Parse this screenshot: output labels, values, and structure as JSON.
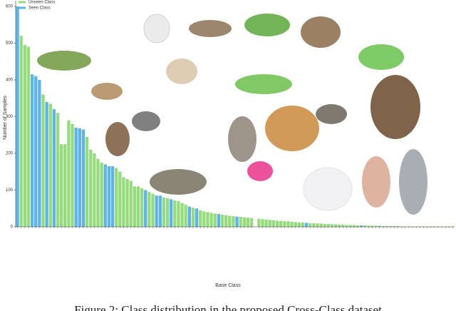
{
  "chart_data": {
    "type": "bar",
    "xlabel": "Base Class",
    "ylabel": "Number of Samples",
    "caption": "Figure 2: Class distribution in the proposed Cross-Class dataset",
    "ylim": [
      0,
      600
    ],
    "yticks": [
      0,
      100,
      200,
      300,
      400,
      500,
      600
    ],
    "series": [
      {
        "name": "Unseen Class",
        "color": "#95dc7c",
        "values": [
          null,
          520,
          495,
          490,
          null,
          null,
          null,
          360,
          null,
          335,
          null,
          310,
          225,
          225,
          290,
          280,
          null,
          null,
          null,
          245,
          210,
          200,
          185,
          175,
          null,
          null,
          null,
          160,
          150,
          135,
          130,
          125,
          110,
          110,
          105,
          null,
          95,
          90,
          null,
          null,
          80,
          78,
          null,
          72,
          70,
          65,
          60,
          null,
          52,
          null,
          45,
          42,
          40,
          38,
          36,
          null,
          33,
          32,
          30,
          29,
          null,
          27,
          26,
          25,
          24,
          null,
          22,
          21,
          20,
          19,
          18,
          17,
          16,
          15,
          15,
          14,
          13,
          12,
          12,
          null,
          10,
          10,
          9,
          9,
          8,
          8,
          7,
          7,
          6,
          6,
          5,
          5,
          5,
          4,
          null,
          4,
          3,
          3,
          3,
          3,
          2,
          2,
          2,
          2,
          2,
          1,
          1,
          1,
          1,
          1,
          1,
          1,
          1,
          1,
          1,
          1,
          1,
          1,
          1,
          1
        ]
      },
      {
        "name": "Seen Class",
        "color": "#5cb3ee",
        "values": [
          600,
          null,
          null,
          null,
          415,
          410,
          400,
          null,
          340,
          null,
          320,
          null,
          null,
          null,
          null,
          null,
          270,
          268,
          265,
          null,
          null,
          null,
          null,
          null,
          170,
          165,
          165,
          null,
          null,
          null,
          null,
          null,
          null,
          null,
          null,
          100,
          null,
          null,
          85,
          85,
          null,
          null,
          75,
          null,
          null,
          null,
          null,
          55,
          null,
          50,
          null,
          null,
          null,
          null,
          null,
          35,
          null,
          null,
          null,
          null,
          28,
          null,
          null,
          null,
          null,
          null,
          null,
          null,
          null,
          null,
          null,
          null,
          null,
          null,
          null,
          null,
          null,
          null,
          null,
          11,
          null,
          null,
          null,
          null,
          null,
          null,
          null,
          null,
          null,
          null,
          null,
          null,
          null,
          null,
          4,
          null,
          null,
          null,
          null,
          null,
          null,
          null,
          null,
          null,
          null,
          null,
          null,
          null,
          null,
          null,
          null,
          null,
          null,
          null,
          null,
          null,
          null,
          null,
          null,
          null
        ]
      }
    ]
  }
}
